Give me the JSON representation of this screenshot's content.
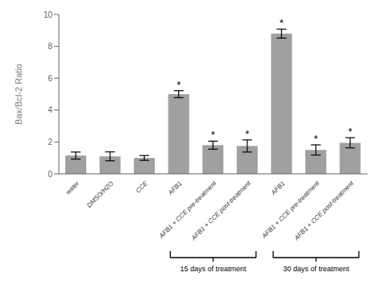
{
  "chart_data": {
    "type": "bar",
    "categories": [
      "water",
      "DMSO/H2O",
      "CCE",
      "AFB1",
      "AFB1 + CCE pre-treatment",
      "AFB1 + CCE post-treatment",
      "AFB1",
      "AFB1 + CCE pre-treatment",
      "AFB1 + CCE post-treatment"
    ],
    "values": [
      1.15,
      1.1,
      1.0,
      5.0,
      1.8,
      1.75,
      8.8,
      1.5,
      1.95
    ],
    "errors": [
      0.22,
      0.28,
      0.15,
      0.22,
      0.25,
      0.38,
      0.28,
      0.32,
      0.32
    ],
    "color": "#a0a0a0",
    "ylabel": "Bax/Bcl-2 Ratio",
    "ylim": [
      0,
      10
    ],
    "yticks": [
      0,
      2,
      4,
      6,
      8,
      10
    ],
    "grid": false,
    "annotations": [
      {
        "text": "*",
        "index": 3
      },
      {
        "text": "*",
        "index": 4
      },
      {
        "text": "*",
        "index": 5
      },
      {
        "text": "*",
        "index": 6
      },
      {
        "text": "*",
        "index": 7
      },
      {
        "text": "*",
        "index": 8
      },
      {
        "text": "15 days of treatment",
        "from": 3,
        "to": 5
      },
      {
        "text": "30 days of treatment",
        "from": 6,
        "to": 8
      }
    ]
  }
}
